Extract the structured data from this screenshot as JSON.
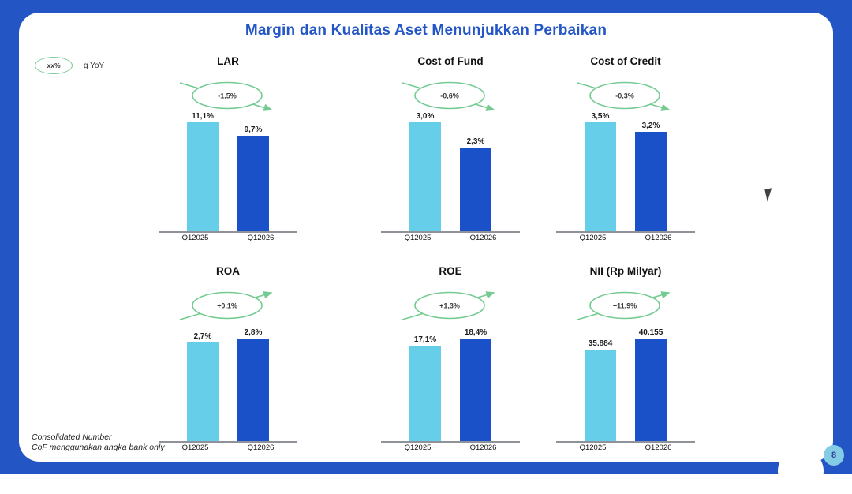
{
  "slide": {
    "title": "Margin dan Kualitas Aset Menunjukkan Perbaikan",
    "legend": {
      "oval_label": "xx%",
      "label": "g YoY"
    },
    "footnotes": [
      "Consolidated Number",
      "CoF menggunakan angka bank only"
    ],
    "page_number": "8"
  },
  "colors": {
    "frame_blue": "#2355C4",
    "title_blue": "#2456C5",
    "bar_light": "#66CEE9",
    "bar_dark": "#1B51C8",
    "trend_green": "#74CB92",
    "rule_gray": "#8a9098"
  },
  "chart_data": [
    {
      "type": "bar",
      "title": "LAR",
      "categories": [
        "Q12025",
        "Q12026"
      ],
      "values": [
        11.1,
        9.7
      ],
      "value_labels": [
        "11,1%",
        "9,7%"
      ],
      "delta_label": "-1,5%",
      "trend": "down",
      "legend_note": "delta shown in green oval, g YoY"
    },
    {
      "type": "bar",
      "title": "Cost of Fund",
      "categories": [
        "Q12025",
        "Q12026"
      ],
      "values": [
        3.0,
        2.3
      ],
      "value_labels": [
        "3,0%",
        "2,3%"
      ],
      "delta_label": "-0,6%",
      "trend": "down"
    },
    {
      "type": "bar",
      "title": "Cost of Credit",
      "categories": [
        "Q12025",
        "Q12026"
      ],
      "values": [
        3.5,
        3.2
      ],
      "value_labels": [
        "3,5%",
        "3,2%"
      ],
      "delta_label": "-0,3%",
      "trend": "down"
    },
    {
      "type": "bar",
      "title": "ROA",
      "categories": [
        "Q12025",
        "Q12026"
      ],
      "values": [
        2.7,
        2.8
      ],
      "value_labels": [
        "2,7%",
        "2,8%"
      ],
      "delta_label": "+0,1%",
      "trend": "up"
    },
    {
      "type": "bar",
      "title": "ROE",
      "categories": [
        "Q12025",
        "Q12026"
      ],
      "values": [
        17.1,
        18.4
      ],
      "value_labels": [
        "17,1%",
        "18,4%"
      ],
      "delta_label": "+1,3%",
      "trend": "up"
    },
    {
      "type": "bar",
      "title": "NII (Rp Milyar)",
      "categories": [
        "Q12025",
        "Q12026"
      ],
      "values": [
        35884,
        40155
      ],
      "value_labels": [
        "35.884",
        "40.155"
      ],
      "delta_label": "+11,9%",
      "trend": "up"
    }
  ]
}
